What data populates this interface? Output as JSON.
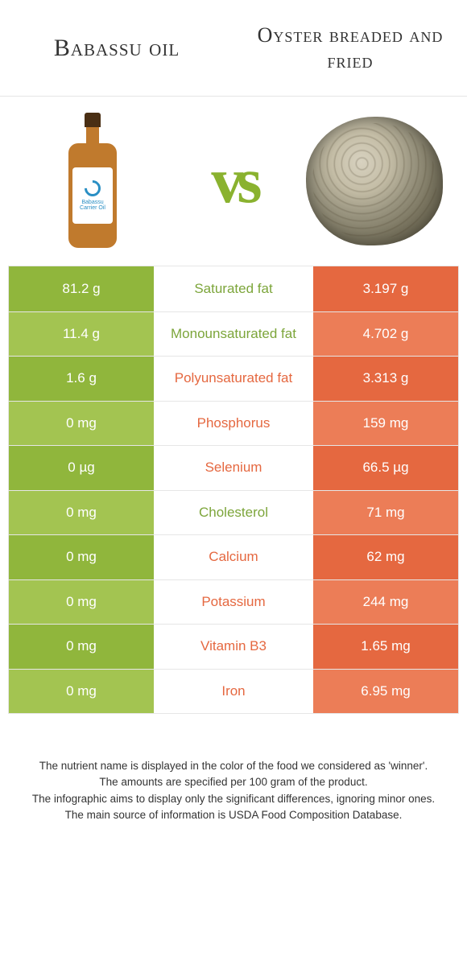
{
  "header": {
    "left_title": "Babassu oil",
    "right_title": "Oyster breaded and fried"
  },
  "vs_label": "vs",
  "bottle_label": "Babassu Carrier Oil",
  "colors": {
    "green_dark": "#90b63c",
    "green_light": "#a3c451",
    "orange_dark": "#e56840",
    "orange_light": "#ec7d57",
    "mid_green": "#7ca53a",
    "mid_orange": "#e56840",
    "vs_color": "#8ab22f",
    "background": "#ffffff",
    "border": "#e6e6e6"
  },
  "rows": [
    {
      "left": "81.2 g",
      "label": "Saturated fat",
      "right": "3.197 g",
      "winner": "left"
    },
    {
      "left": "11.4 g",
      "label": "Monounsaturated fat",
      "right": "4.702 g",
      "winner": "left"
    },
    {
      "left": "1.6 g",
      "label": "Polyunsaturated fat",
      "right": "3.313 g",
      "winner": "right"
    },
    {
      "left": "0 mg",
      "label": "Phosphorus",
      "right": "159 mg",
      "winner": "right"
    },
    {
      "left": "0 µg",
      "label": "Selenium",
      "right": "66.5 µg",
      "winner": "right"
    },
    {
      "left": "0 mg",
      "label": "Cholesterol",
      "right": "71 mg",
      "winner": "left"
    },
    {
      "left": "0 mg",
      "label": "Calcium",
      "right": "62 mg",
      "winner": "right"
    },
    {
      "left": "0 mg",
      "label": "Potassium",
      "right": "244 mg",
      "winner": "right"
    },
    {
      "left": "0 mg",
      "label": "Vitamin B3",
      "right": "1.65 mg",
      "winner": "right"
    },
    {
      "left": "0 mg",
      "label": "Iron",
      "right": "6.95 mg",
      "winner": "right"
    }
  ],
  "footer": {
    "line1": "The nutrient name is displayed in the color of the food we considered as 'winner'.",
    "line2": "The amounts are specified per 100 gram of the product.",
    "line3": "The infographic aims to display only the significant differences, ignoring minor ones.",
    "line4": "The main source of information is USDA Food Composition Database."
  }
}
